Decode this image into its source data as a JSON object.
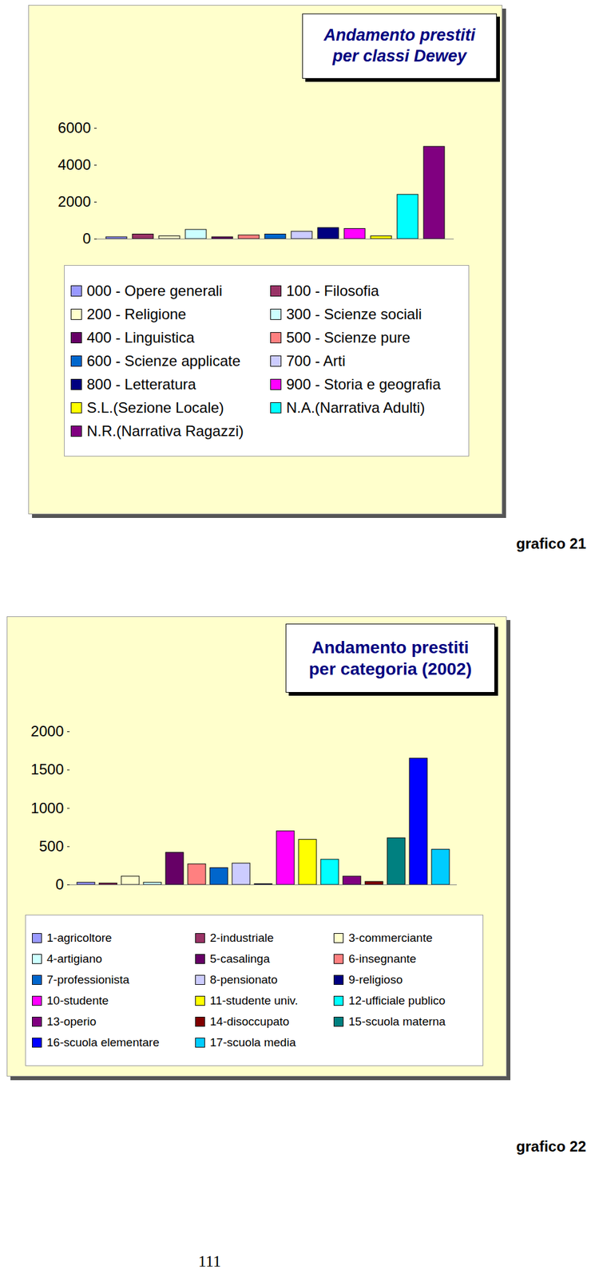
{
  "chart_data": [
    {
      "type": "bar",
      "title": "Andamento prestiti\nper classi Dewey",
      "categories": [
        "000 - Opere generali",
        "100 - Filosofia",
        "200 - Religione",
        "300 - Scienze sociali",
        "400 - Linguistica",
        "500 - Scienze pure",
        "600 - Scienze applicate",
        "700 - Arti",
        "800 - Letteratura",
        "900 - Storia e geografia",
        "S.L.(Sezione Locale)",
        "N.A.(Narrativa Adulti)",
        "N.R.(Narrativa Ragazzi)"
      ],
      "values": [
        100,
        250,
        150,
        500,
        100,
        200,
        250,
        400,
        600,
        550,
        150,
        2400,
        5000
      ],
      "colors": [
        "#9999FF",
        "#993366",
        "#FFFFCC",
        "#CCFFFF",
        "#660066",
        "#FF8080",
        "#0066CC",
        "#CCCCFF",
        "#000080",
        "#FF00FF",
        "#FFFF00",
        "#00FFFF",
        "#800080"
      ],
      "ylim": [
        0,
        6000
      ],
      "yticks": [
        0,
        2000,
        4000,
        6000
      ],
      "grid": false,
      "legend": "bottom",
      "tick_labels": "y",
      "caption": "grafico 21"
    },
    {
      "type": "bar",
      "title": "Andamento prestiti\nper categoria (2002)",
      "categories": [
        "1-agricoltore",
        "2-industriale",
        "3-commerciante",
        "4-artigiano",
        "5-casalinga",
        "6-insegnante",
        "7-professionista",
        "8-pensionato",
        "9-religioso",
        "10-studente",
        "11-studente univ.",
        "12-ufficiale publico",
        "13-operio",
        "14-disoccupato",
        "15-scuola materna",
        "16-scuola elementare",
        "17-scuola media"
      ],
      "values": [
        30,
        20,
        110,
        30,
        420,
        270,
        220,
        280,
        10,
        700,
        590,
        330,
        110,
        40,
        610,
        1650,
        460
      ],
      "colors": [
        "#9999FF",
        "#993366",
        "#FFFFCC",
        "#CCFFFF",
        "#660066",
        "#FF8080",
        "#0066CC",
        "#CCCCFF",
        "#000080",
        "#FF00FF",
        "#FFFF00",
        "#00FFFF",
        "#800080",
        "#800000",
        "#008080",
        "#0000FF",
        "#00CCFF"
      ],
      "ylim": [
        0,
        2000
      ],
      "yticks": [
        0,
        500,
        1000,
        1500,
        2000
      ],
      "grid": false,
      "legend": "bottom",
      "tick_labels": "y",
      "caption": "grafico 22"
    }
  ],
  "page_number": "111"
}
